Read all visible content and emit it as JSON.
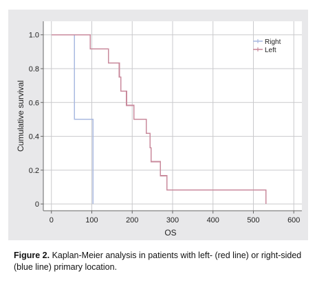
{
  "chart_data": {
    "type": "line",
    "step": true,
    "xlabel": "OS",
    "ylabel": "Cumulative survival",
    "xlim": [
      -20,
      620
    ],
    "ylim": [
      -0.04,
      1.08
    ],
    "x_ticks": [
      0,
      100,
      200,
      300,
      400,
      500,
      600
    ],
    "x_tick_labels": [
      "0",
      "100",
      "200",
      "300",
      "400",
      "500",
      "600"
    ],
    "y_ticks": [
      0,
      0.2,
      0.4,
      0.6,
      0.8,
      1.0
    ],
    "y_tick_labels": [
      "0",
      "0.2",
      "0.4",
      "0.6",
      "0.8",
      "1.0"
    ],
    "grid": true,
    "legend_position": "top-right",
    "series": [
      {
        "name": "Right",
        "color": "#a9b9e0",
        "steps": [
          [
            0,
            1.0
          ],
          [
            57,
            0.5
          ],
          [
            103,
            0.0
          ]
        ]
      },
      {
        "name": "Left",
        "color": "#c98a9c",
        "steps": [
          [
            0,
            1.0
          ],
          [
            96,
            0.917
          ],
          [
            141,
            0.833
          ],
          [
            168,
            0.75
          ],
          [
            172,
            0.667
          ],
          [
            186,
            0.583
          ],
          [
            204,
            0.5
          ],
          [
            235,
            0.417
          ],
          [
            244,
            0.333
          ],
          [
            247,
            0.25
          ],
          [
            270,
            0.167
          ],
          [
            286,
            0.083
          ],
          [
            531,
            0.0
          ]
        ]
      }
    ]
  },
  "caption": {
    "label": "Figure 2.",
    "text": " Kaplan-Meier analysis in patients with left- (red line) or right-sided (blue line) primary location."
  }
}
